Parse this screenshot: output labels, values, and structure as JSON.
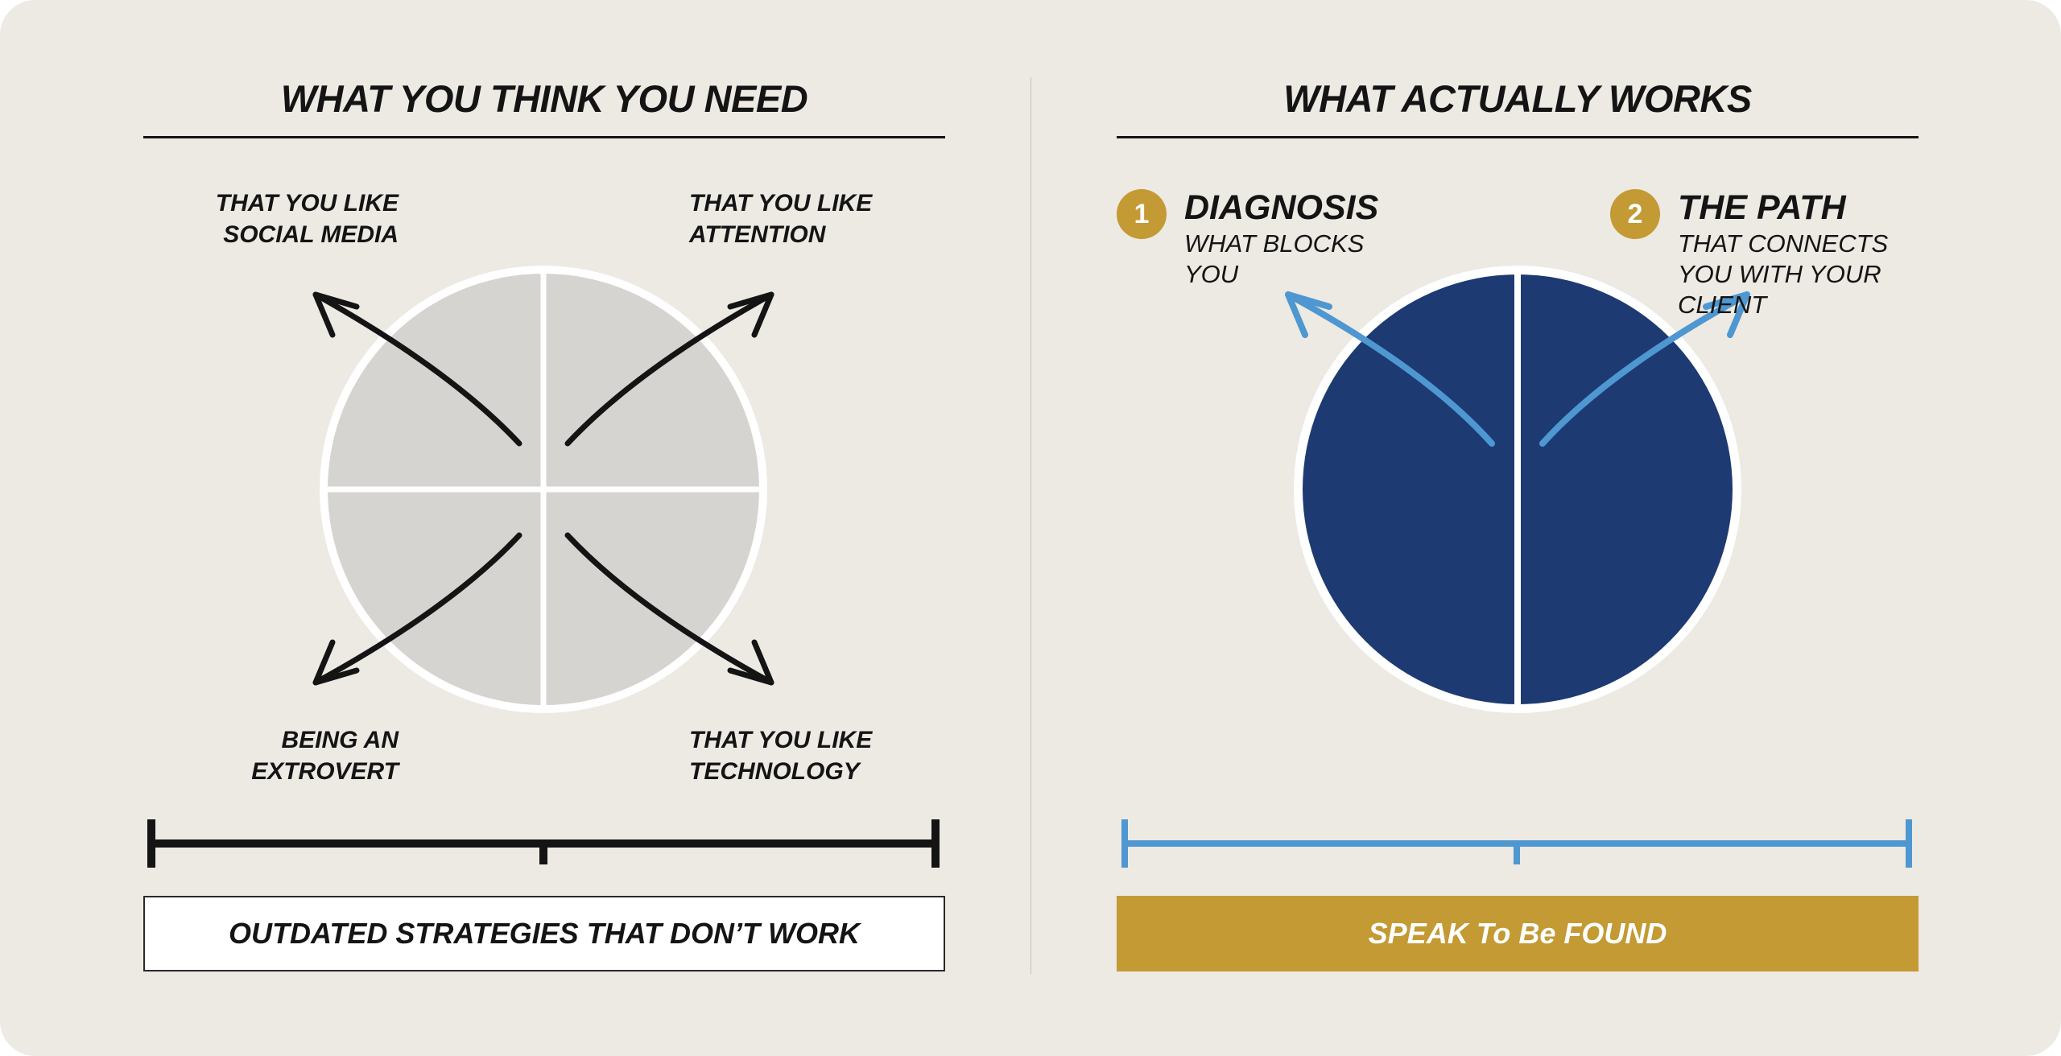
{
  "left_panel": {
    "title": "WHAT YOU THINK YOU NEED",
    "labels": {
      "top_left": [
        "THAT YOU LIKE",
        "SOCIAL MEDIA"
      ],
      "top_right": [
        "THAT YOU LIKE",
        "ATTENTION"
      ],
      "bottom_left": [
        "BEING AN",
        "EXTROVERT"
      ],
      "bottom_right": [
        "THAT YOU LIKE",
        "TECHNOLOGY"
      ]
    },
    "footer": "OUTDATED STRATEGIES THAT DON’T WORK"
  },
  "right_panel": {
    "title": "WHAT ACTUALLY WORKS",
    "steps": [
      {
        "number": "1",
        "title": "DIAGNOSIS",
        "subtitle": [
          "WHAT BLOCKS",
          "YOU"
        ]
      },
      {
        "number": "2",
        "title": "THE PATH",
        "subtitle": [
          "THAT CONNECTS",
          "YOU WITH YOUR",
          "CLIENT"
        ]
      }
    ],
    "footer": "SPEAK To Be FOUND"
  },
  "colors": {
    "background": "#ede9e3",
    "quadrant_fill": "#d5d4d0",
    "navy": "#1e3a72",
    "gold": "#c39a33",
    "blue_arrow": "#4e97d1",
    "ink": "#141414"
  },
  "icons": [
    "arrow-up-left-icon",
    "arrow-up-right-icon",
    "arrow-down-left-icon",
    "arrow-down-right-icon",
    "scale-bar-icon"
  ]
}
